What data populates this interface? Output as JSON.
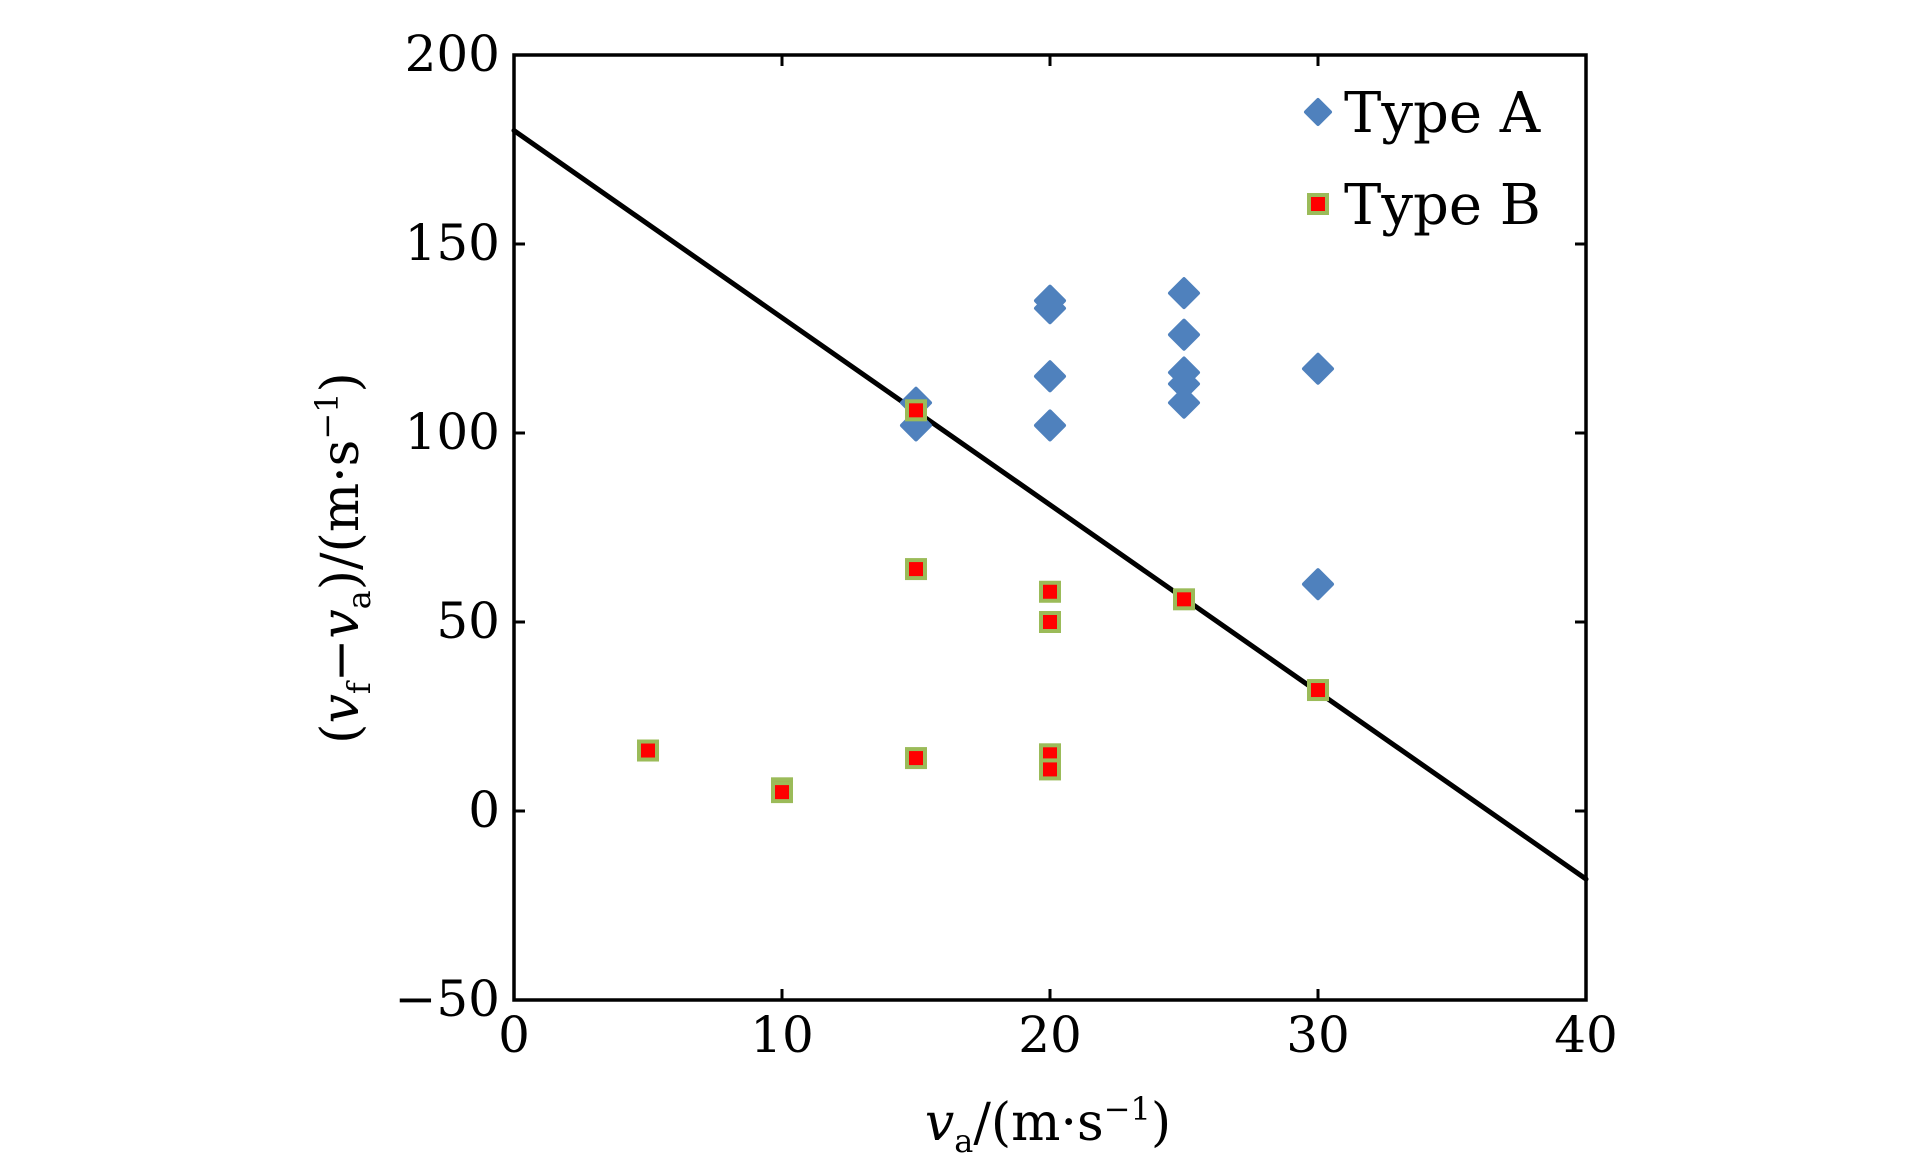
{
  "chart_data": {
    "type": "scatter",
    "xlabel": {
      "base": "v",
      "sub": "a",
      "unit": "/(m·s",
      "sup": "−1",
      "close": ")"
    },
    "ylabel": {
      "open": "(",
      "v1": "v",
      "sub1": "f",
      "minus": "−",
      "v2": "v",
      "sub2": "a",
      "unit": ")/(m·s",
      "sup": "−1",
      "close": ")"
    },
    "xlim": [
      0,
      40
    ],
    "ylim": [
      -50,
      200
    ],
    "xticks": [
      0,
      10,
      20,
      30,
      40
    ],
    "yticks": [
      -50,
      0,
      50,
      100,
      150,
      200
    ],
    "x_tick_labels": [
      "0",
      "10",
      "20",
      "30",
      "40"
    ],
    "y_tick_labels": [
      "−50",
      "0",
      "50",
      "100",
      "150",
      "200"
    ],
    "legend_position": "top-right",
    "series": [
      {
        "name": "Type A",
        "marker": "diamond",
        "color": "#4f81bd",
        "points": [
          [
            15,
            108
          ],
          [
            15,
            102
          ],
          [
            20,
            135
          ],
          [
            20,
            133
          ],
          [
            20,
            115
          ],
          [
            20,
            102
          ],
          [
            25,
            137
          ],
          [
            25,
            126
          ],
          [
            25,
            116
          ],
          [
            25,
            113
          ],
          [
            25,
            108
          ],
          [
            30,
            117
          ],
          [
            30,
            60
          ]
        ]
      },
      {
        "name": "Type B",
        "marker": "square",
        "color": "#ff0000",
        "edge_color": "#9bbb59",
        "points": [
          [
            5,
            16
          ],
          [
            10,
            6
          ],
          [
            10,
            5
          ],
          [
            15,
            106
          ],
          [
            15,
            64
          ],
          [
            15,
            14
          ],
          [
            20,
            58
          ],
          [
            20,
            50
          ],
          [
            20,
            15
          ],
          [
            20,
            11
          ],
          [
            25,
            56
          ],
          [
            30,
            32
          ]
        ]
      }
    ],
    "fit_line": {
      "color": "#000000",
      "points": [
        [
          0,
          180
        ],
        [
          40,
          -18
        ]
      ]
    }
  }
}
